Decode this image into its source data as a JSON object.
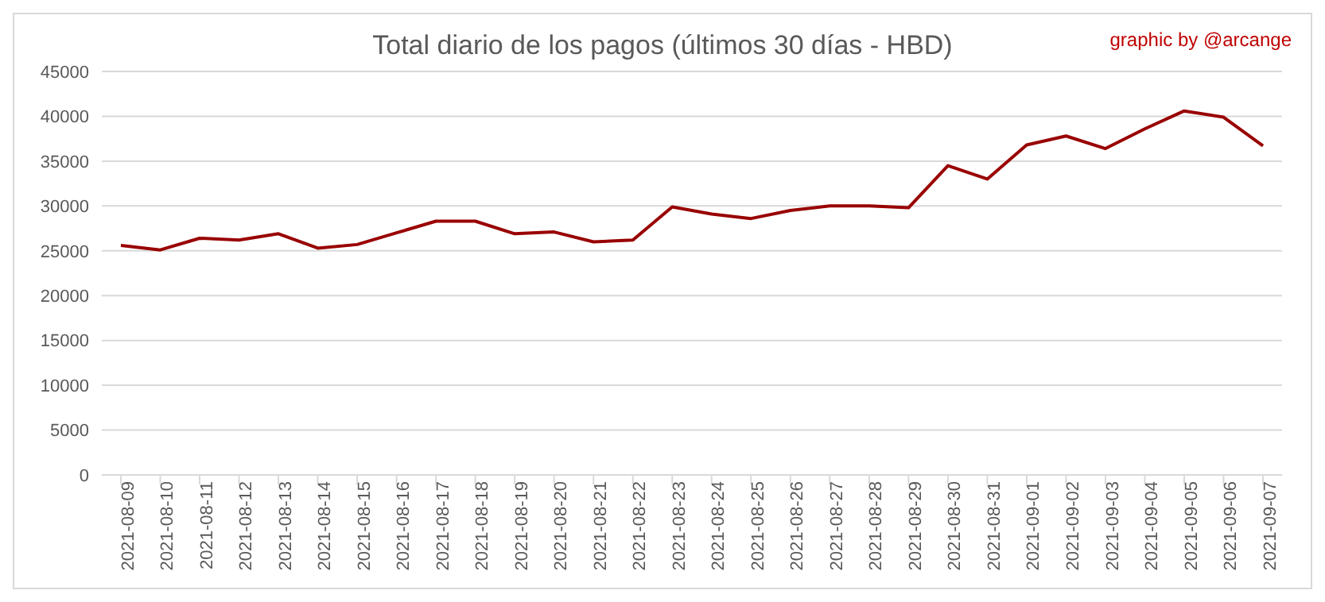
{
  "chart_data": {
    "type": "line",
    "title": "Total diario de los pagos (últimos 30 días - HBD)",
    "annotations": [
      "graphic by @arcange"
    ],
    "categories": [
      "2021-08-09",
      "2021-08-10",
      "2021-08-11",
      "2021-08-12",
      "2021-08-13",
      "2021-08-14",
      "2021-08-15",
      "2021-08-16",
      "2021-08-17",
      "2021-08-18",
      "2021-08-19",
      "2021-08-20",
      "2021-08-21",
      "2021-08-22",
      "2021-08-23",
      "2021-08-24",
      "2021-08-25",
      "2021-08-26",
      "2021-08-27",
      "2021-08-28",
      "2021-08-29",
      "2021-08-30",
      "2021-08-31",
      "2021-09-01",
      "2021-09-02",
      "2021-09-03",
      "2021-09-04",
      "2021-09-05",
      "2021-09-06",
      "2021-09-07"
    ],
    "series": [
      {
        "color": "#990000",
        "values": [
          25600,
          25100,
          26400,
          26200,
          26900,
          25300,
          25700,
          27000,
          28300,
          28300,
          26900,
          27100,
          26000,
          26200,
          29900,
          29100,
          28600,
          29500,
          30000,
          30000,
          29800,
          34500,
          33000,
          36800,
          37800,
          36400,
          38600,
          40600,
          39900,
          36700
        ]
      }
    ],
    "ylim": [
      0,
      45000
    ],
    "yticks": [
      0,
      5000,
      10000,
      15000,
      20000,
      25000,
      30000,
      35000,
      40000,
      45000
    ],
    "grid": "y",
    "legend": false,
    "marker": "none",
    "line_style": "solid"
  }
}
